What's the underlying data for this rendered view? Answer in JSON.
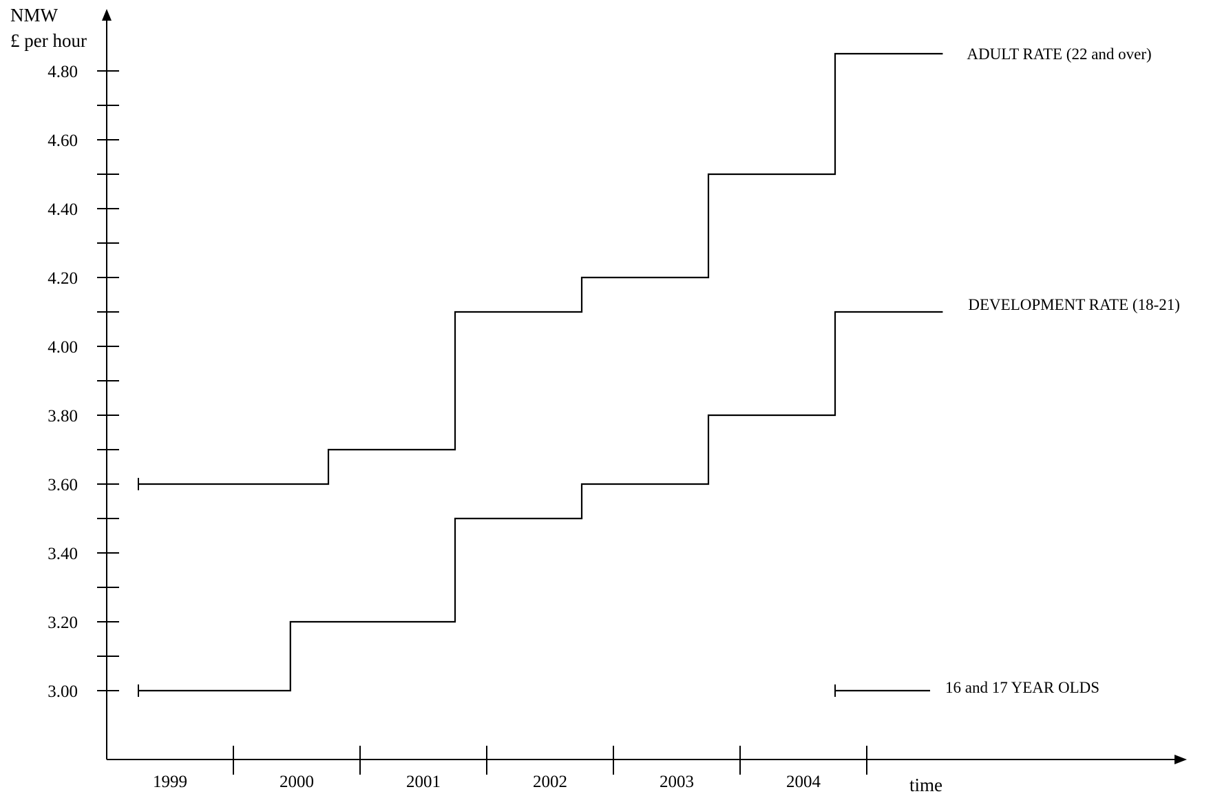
{
  "chart_data": {
    "type": "line",
    "step": true,
    "y_title_line1": "NMW",
    "y_title_line2": "£ per hour",
    "xlabel": "time",
    "ylim": [
      2.8,
      5.0
    ],
    "y_ticks": [
      "3.00",
      "3.20",
      "3.40",
      "3.60",
      "3.80",
      "4.00",
      "4.20",
      "4.40",
      "4.60",
      "4.80"
    ],
    "x_categories": [
      "1999",
      "2000",
      "2001",
      "2002",
      "2003",
      "2004"
    ],
    "series": [
      {
        "name": "ADULT RATE (22 and over)",
        "points": [
          {
            "x": 1999.25,
            "y": 3.6
          },
          {
            "x": 2000.75,
            "y": 3.7
          },
          {
            "x": 2001.75,
            "y": 4.1
          },
          {
            "x": 2002.75,
            "y": 4.2
          },
          {
            "x": 2003.75,
            "y": 4.5
          },
          {
            "x": 2004.75,
            "y": 4.85
          },
          {
            "x": 2005.6,
            "y": 4.85
          }
        ]
      },
      {
        "name": "DEVELOPMENT RATE (18-21)",
        "points": [
          {
            "x": 1999.25,
            "y": 3.0
          },
          {
            "x": 2000.45,
            "y": 3.2
          },
          {
            "x": 2001.75,
            "y": 3.5
          },
          {
            "x": 2002.75,
            "y": 3.6
          },
          {
            "x": 2003.75,
            "y": 3.8
          },
          {
            "x": 2004.75,
            "y": 4.1
          },
          {
            "x": 2005.6,
            "y": 4.1
          }
        ]
      },
      {
        "name": "16 and 17 YEAR OLDS",
        "points": [
          {
            "x": 2004.75,
            "y": 3.0
          },
          {
            "x": 2005.5,
            "y": 3.0
          }
        ]
      }
    ]
  }
}
